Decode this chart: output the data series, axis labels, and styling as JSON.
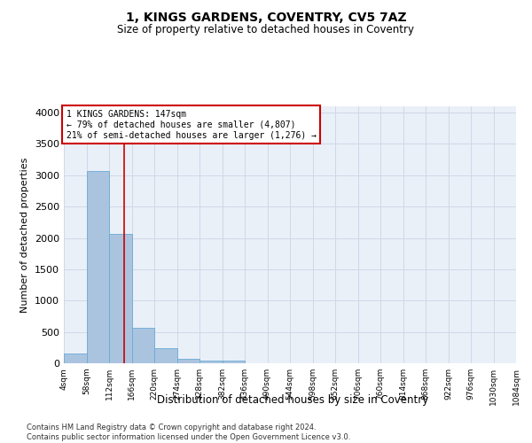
{
  "title": "1, KINGS GARDENS, COVENTRY, CV5 7AZ",
  "subtitle": "Size of property relative to detached houses in Coventry",
  "xlabel": "Distribution of detached houses by size in Coventry",
  "ylabel": "Number of detached properties",
  "property_size": 147,
  "pct_smaller": 79,
  "count_smaller": 4807,
  "pct_larger_semi": 21,
  "count_larger_semi": 1276,
  "bin_edges": [
    4,
    58,
    112,
    166,
    220,
    274,
    328,
    382,
    436,
    490,
    544,
    598,
    652,
    706,
    760,
    814,
    868,
    922,
    976,
    1030,
    1084
  ],
  "bin_counts": [
    150,
    3070,
    2070,
    570,
    240,
    70,
    40,
    40,
    0,
    0,
    0,
    0,
    0,
    0,
    0,
    0,
    0,
    0,
    0,
    0
  ],
  "bar_color": "#aac4e0",
  "bar_edge_color": "#6aaad4",
  "vline_color": "#cc0000",
  "vline_x": 147,
  "annotation_box_color": "#cc0000",
  "grid_color": "#d0d8e8",
  "background_color": "#eaf0f8",
  "footer_line1": "Contains HM Land Registry data © Crown copyright and database right 2024.",
  "footer_line2": "Contains public sector information licensed under the Open Government Licence v3.0.",
  "tick_labels": [
    "4sqm",
    "58sqm",
    "112sqm",
    "166sqm",
    "220sqm",
    "274sqm",
    "328sqm",
    "382sqm",
    "436sqm",
    "490sqm",
    "544sqm",
    "598sqm",
    "652sqm",
    "706sqm",
    "760sqm",
    "814sqm",
    "868sqm",
    "922sqm",
    "976sqm",
    "1030sqm",
    "1084sqm"
  ],
  "ylim": [
    0,
    4100
  ],
  "yticks": [
    0,
    500,
    1000,
    1500,
    2000,
    2500,
    3000,
    3500,
    4000
  ]
}
